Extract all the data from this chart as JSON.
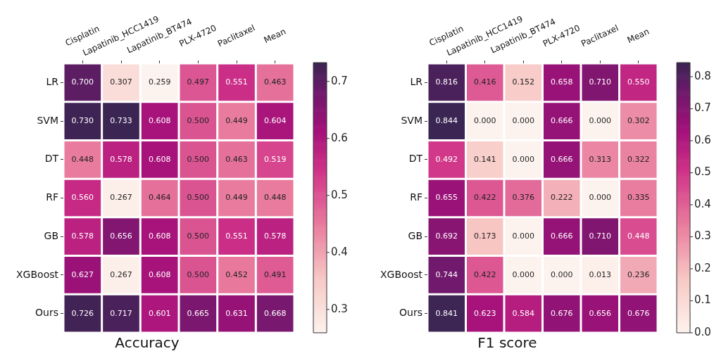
{
  "chart_data": [
    {
      "type": "heatmap",
      "title": "Accuracy",
      "categories": [
        "Cisplatin",
        "Lapatinib_HCC1419",
        "Lapatinib_BT474",
        "PLX-4720",
        "Paclitaxel",
        "Mean"
      ],
      "y_categories": [
        "LR",
        "SVM",
        "DT",
        "RF",
        "GB",
        "XGBoost",
        "Ours"
      ],
      "cells": [
        [
          0.7,
          0.307,
          0.259,
          0.497,
          0.551,
          0.463
        ],
        [
          0.73,
          0.733,
          0.608,
          0.5,
          0.449,
          0.604
        ],
        [
          0.448,
          0.578,
          0.608,
          0.5,
          0.463,
          0.519
        ],
        [
          0.56,
          0.267,
          0.464,
          0.5,
          0.449,
          0.448
        ],
        [
          0.578,
          0.656,
          0.608,
          0.5,
          0.551,
          0.578
        ],
        [
          0.627,
          0.267,
          0.608,
          0.5,
          0.452,
          0.491
        ],
        [
          0.726,
          0.717,
          0.601,
          0.665,
          0.631,
          0.668
        ]
      ],
      "cell_labels": [
        [
          "0.700",
          "0.307",
          "0.259",
          "0.497",
          "0.551",
          "0.463"
        ],
        [
          "0.730",
          "0.733",
          "0.608",
          "0.500",
          "0.449",
          "0.604"
        ],
        [
          "0.448",
          "0.578",
          "0.608",
          "0.500",
          "0.463",
          "0.519"
        ],
        [
          "0.560",
          "0.267",
          "0.464",
          "0.500",
          "0.449",
          "0.448"
        ],
        [
          "0.578",
          "0.656",
          "0.608",
          "0.500",
          "0.551",
          "0.578"
        ],
        [
          "0.627",
          "0.267",
          "0.608",
          "0.500",
          "0.452",
          "0.491"
        ],
        [
          "0.726",
          "0.717",
          "0.601",
          "0.665",
          "0.631",
          "0.668"
        ]
      ],
      "clim": [
        0.259,
        0.733
      ],
      "cticks": [
        {
          "value": 0.3,
          "label": "0.3"
        },
        {
          "value": 0.4,
          "label": "0.4"
        },
        {
          "value": 0.5,
          "label": "0.5"
        },
        {
          "value": 0.6,
          "label": "0.6"
        },
        {
          "value": 0.7,
          "label": "0.7"
        }
      ]
    },
    {
      "type": "heatmap",
      "title": "F1 score",
      "categories": [
        "Cisplatin",
        "Lapatinib_HCC1419",
        "Lapatinib_BT474",
        "PLX-4720",
        "Paclitaxel",
        "Mean"
      ],
      "y_categories": [
        "LR",
        "SVM",
        "DT",
        "RF",
        "GB",
        "XGBoost",
        "Ours"
      ],
      "cells": [
        [
          0.816,
          0.416,
          0.152,
          0.658,
          0.71,
          0.55
        ],
        [
          0.844,
          0.0,
          0.0,
          0.666,
          0.0,
          0.302
        ],
        [
          0.492,
          0.141,
          0.0,
          0.666,
          0.313,
          0.322
        ],
        [
          0.655,
          0.422,
          0.376,
          0.222,
          0.0,
          0.335
        ],
        [
          0.692,
          0.173,
          0.0,
          0.666,
          0.71,
          0.448
        ],
        [
          0.744,
          0.422,
          0.0,
          0.0,
          0.013,
          0.236
        ],
        [
          0.841,
          0.623,
          0.584,
          0.676,
          0.656,
          0.676
        ]
      ],
      "cell_labels": [
        [
          "0.816",
          "0.416",
          "0.152",
          "0.658",
          "0.710",
          "0.550"
        ],
        [
          "0.844",
          "0.000",
          "0.000",
          "0.666",
          "0.000",
          "0.302"
        ],
        [
          "0.492",
          "0.141",
          "0.000",
          "0.666",
          "0.313",
          "0.322"
        ],
        [
          "0.655",
          "0.422",
          "0.376",
          "0.222",
          "0.000",
          "0.335"
        ],
        [
          "0.692",
          "0.173",
          "0.000",
          "0.666",
          "0.710",
          "0.448"
        ],
        [
          "0.744",
          "0.422",
          "0.000",
          "0.000",
          "0.013",
          "0.236"
        ],
        [
          "0.841",
          "0.623",
          "0.584",
          "0.676",
          "0.656",
          "0.676"
        ]
      ],
      "clim": [
        0,
        0.844
      ],
      "cticks": [
        {
          "value": 0,
          "label": "0.0"
        },
        {
          "value": 0.1,
          "label": "0.1"
        },
        {
          "value": 0.2,
          "label": "0.2"
        },
        {
          "value": 0.3,
          "label": "0.3"
        },
        {
          "value": 0.4,
          "label": "0.4"
        },
        {
          "value": 0.5,
          "label": "0.5"
        },
        {
          "value": 0.6,
          "label": "0.6"
        },
        {
          "value": 0.7,
          "label": "0.7"
        },
        {
          "value": 0.8,
          "label": "0.8"
        }
      ]
    }
  ]
}
